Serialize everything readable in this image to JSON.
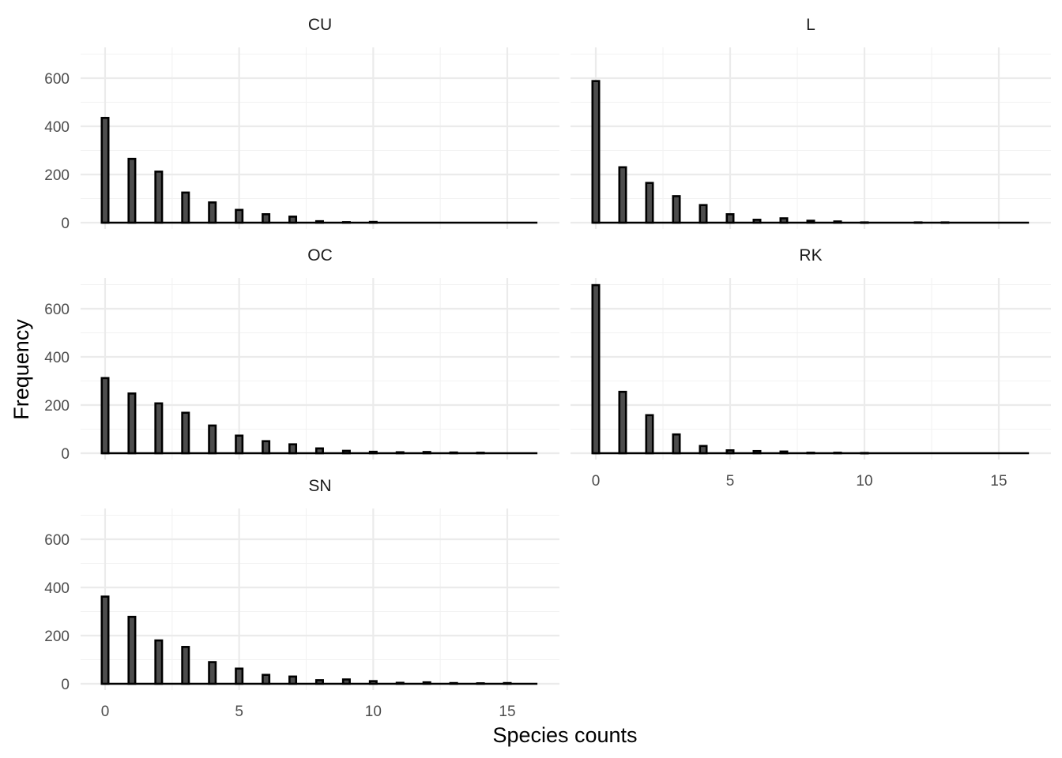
{
  "chart_data": {
    "type": "bar",
    "layout": "facet-grid",
    "xlabel": "Species counts",
    "ylabel": "Frequency",
    "xlim": [
      -1,
      16.5
    ],
    "ylim": [
      0,
      700
    ],
    "x_ticks": [
      0,
      5,
      10,
      15
    ],
    "y_ticks": [
      0,
      200,
      400,
      600
    ],
    "bar_fill": "#4d4d4d",
    "bar_outline": "#000000",
    "grid": true,
    "x": [
      0,
      1,
      2,
      3,
      4,
      5,
      6,
      7,
      8,
      9,
      10,
      11,
      12,
      13,
      14,
      15,
      16
    ],
    "panels": [
      {
        "name": "CU",
        "values": [
          435,
          265,
          212,
          125,
          84,
          53,
          35,
          25,
          6,
          2,
          3,
          0,
          0,
          0,
          0,
          0,
          0
        ]
      },
      {
        "name": "L",
        "values": [
          588,
          230,
          165,
          110,
          73,
          35,
          12,
          18,
          8,
          5,
          1,
          0,
          1,
          1,
          0,
          0,
          0
        ]
      },
      {
        "name": "OC",
        "values": [
          312,
          248,
          207,
          168,
          115,
          73,
          50,
          37,
          20,
          10,
          6,
          4,
          5,
          3,
          2,
          0,
          0
        ]
      },
      {
        "name": "RK",
        "values": [
          698,
          255,
          158,
          78,
          30,
          12,
          9,
          7,
          2,
          2,
          1,
          0,
          0,
          0,
          0,
          0,
          0
        ]
      },
      {
        "name": "SN",
        "values": [
          362,
          278,
          180,
          153,
          90,
          63,
          37,
          30,
          15,
          18,
          11,
          4,
          6,
          3,
          2,
          3,
          0
        ]
      }
    ]
  }
}
